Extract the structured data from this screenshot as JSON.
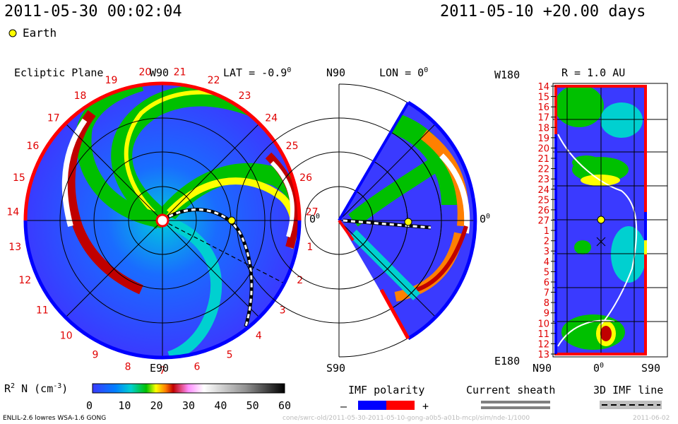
{
  "header": {
    "timestamp": "2011-05-30 00:02:04",
    "run_info": "2011-05-10 +20.00 days",
    "legend_earth": "Earth"
  },
  "panels": {
    "ecliptic": {
      "title": "Ecliptic Plane",
      "top_label": "W90",
      "lat_label": "LAT = -0.9",
      "lat_sup": "0",
      "bottom_label": "E90",
      "right_label": "0",
      "right_sup": "0",
      "tick_numbers": [
        "13",
        "14",
        "15",
        "16",
        "17",
        "18",
        "19",
        "20",
        "21",
        "22",
        "23",
        "24",
        "25",
        "26",
        "27",
        "1",
        "2",
        "3",
        "4",
        "5",
        "6",
        "7",
        "8",
        "9",
        "10",
        "11",
        "12"
      ]
    },
    "meridional": {
      "top_label": "N90",
      "lon_label": "LON = 0",
      "lon_sup": "0",
      "bottom_label": "S90",
      "right_label": "0",
      "right_sup": "0"
    },
    "shell": {
      "top_label": "W180",
      "r_label": "R = 1.0 AU",
      "bottom_label": "E180",
      "x_labels": [
        "N90",
        "0",
        "S90"
      ],
      "x_sup": "0",
      "rotation_labels": [
        "14",
        "15",
        "16",
        "17",
        "18",
        "19",
        "20",
        "21",
        "22",
        "23",
        "24",
        "25",
        "26",
        "27",
        "1",
        "2",
        "3",
        "4",
        "5",
        "6",
        "7",
        "8",
        "9",
        "10",
        "11",
        "12",
        "13"
      ]
    }
  },
  "chart_data": {
    "type": "heatmap",
    "colorbar": {
      "label": "R",
      "label_sup": "2",
      "label_rest": " N (cm",
      "label_exp": "-3",
      "label_end": ")",
      "ticks": [
        "0",
        "10",
        "20",
        "30",
        "40",
        "50",
        "60"
      ],
      "range": [
        0,
        60
      ],
      "stops": [
        "#3a3aff",
        "#0080ff",
        "#00d0d0",
        "#00c000",
        "#ffff00",
        "#ff8000",
        "#c00000",
        "#ff90ff",
        "#ffffff",
        "#909090",
        "#000000"
      ]
    },
    "imf_polarity": {
      "label": "IMF polarity",
      "minus": "–",
      "plus": "+",
      "colors": [
        "#0000ff",
        "#ff0000"
      ]
    },
    "current_sheath": {
      "label": "Current sheath"
    },
    "imf_line": {
      "label": "3D IMF line"
    }
  },
  "footer": {
    "model": "ENLIL-2.6 lowres WSA-1.6 GONG",
    "path": "cone/swrc-old/2011-05-30-2011-05-10-gong-a0b5-a01b-mcpl/sim/nde-1/1000",
    "date": "2011-06-02"
  },
  "colors": {
    "earth": "#ffff00",
    "bg_blue": "#3a3aff",
    "red_ring": "#ff0000",
    "blue_ring": "#0000ff"
  }
}
